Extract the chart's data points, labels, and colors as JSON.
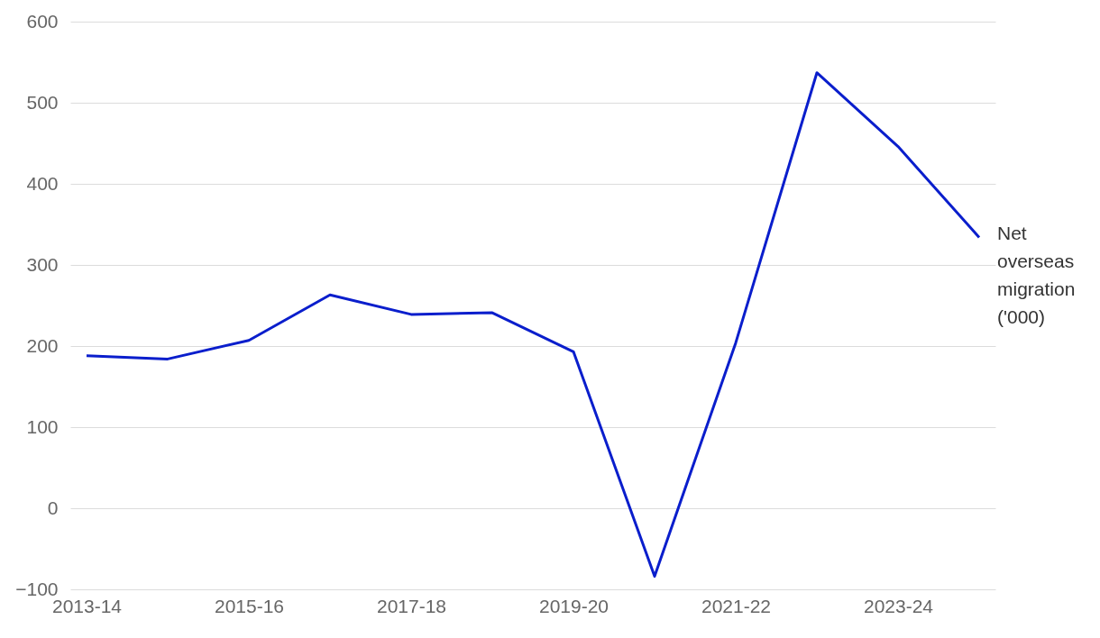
{
  "chart_data": {
    "type": "line",
    "categories": [
      "2013-14",
      null,
      "2015-16",
      null,
      "2017-18",
      null,
      "2019-20",
      null,
      "2021-22",
      null,
      "2023-24",
      null
    ],
    "series": [
      {
        "name": "Net overseas migration ('000)",
        "color": "#0a1ecc",
        "values": [
          188,
          184,
          207,
          263,
          239,
          241,
          193,
          -84,
          204,
          537,
          446,
          334
        ]
      }
    ],
    "ylim": [
      -100,
      600
    ],
    "yticks": [
      {
        "value": -100,
        "label": "−100"
      },
      0,
      100,
      200,
      300,
      400,
      500,
      600
    ],
    "grid": "y",
    "legend": false,
    "marker": "none",
    "line_style": "solid"
  }
}
